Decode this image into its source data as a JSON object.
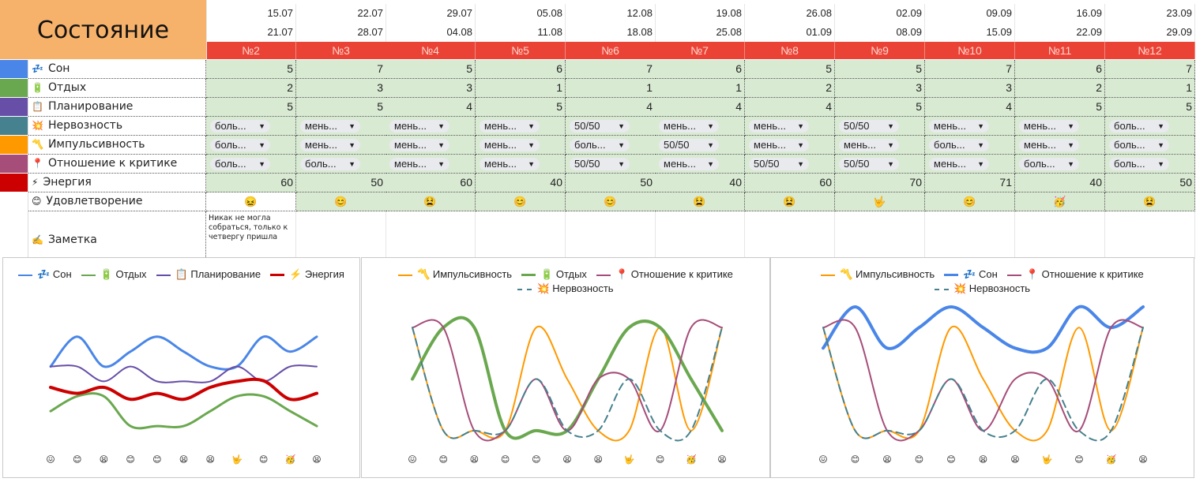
{
  "title": "Состояние",
  "weeks": [
    {
      "start": "15.07",
      "end": "21.07",
      "num": "№2"
    },
    {
      "start": "22.07",
      "end": "28.07",
      "num": "№3"
    },
    {
      "start": "29.07",
      "end": "04.08",
      "num": "№4"
    },
    {
      "start": "05.08",
      "end": "11.08",
      "num": "№5"
    },
    {
      "start": "12.08",
      "end": "18.08",
      "num": "№6"
    },
    {
      "start": "19.08",
      "end": "25.08",
      "num": "№7"
    },
    {
      "start": "26.08",
      "end": "01.09",
      "num": "№8"
    },
    {
      "start": "02.09",
      "end": "08.09",
      "num": "№9"
    },
    {
      "start": "09.09",
      "end": "15.09",
      "num": "№10"
    },
    {
      "start": "16.09",
      "end": "22.09",
      "num": "№11"
    },
    {
      "start": "23.09",
      "end": "29.09",
      "num": "№12"
    }
  ],
  "rows": [
    {
      "icon": "💤",
      "label": "Сон",
      "color": "#4a86e8",
      "type": "num",
      "values": [
        "5",
        "7",
        "5",
        "6",
        "7",
        "6",
        "5",
        "5",
        "7",
        "6",
        "7"
      ]
    },
    {
      "icon": "🔋",
      "label": "Отдых",
      "color": "#6aa84f",
      "type": "num",
      "values": [
        "2",
        "3",
        "3",
        "1",
        "1",
        "1",
        "2",
        "3",
        "3",
        "2",
        "1"
      ]
    },
    {
      "icon": "📋",
      "label": "Планирование",
      "color": "#674ea7",
      "type": "num",
      "values": [
        "5",
        "5",
        "4",
        "5",
        "4",
        "4",
        "4",
        "5",
        "4",
        "5",
        "5"
      ]
    },
    {
      "icon": "💥",
      "label": "Нервозность",
      "color": "#45818e",
      "type": "chip",
      "values": [
        "боль...",
        "мень...",
        "мень...",
        "мень...",
        "50/50",
        "мень...",
        "мень...",
        "50/50",
        "мень...",
        "мень...",
        "боль..."
      ]
    },
    {
      "icon": "〽️",
      "label": "Импульсивность",
      "color": "#ff9900",
      "type": "chip",
      "values": [
        "боль...",
        "мень...",
        "мень...",
        "мень...",
        "боль...",
        "50/50",
        "мень...",
        "мень...",
        "боль...",
        "мень...",
        "боль..."
      ]
    },
    {
      "icon": "📍",
      "label": "Отношение к критике",
      "color": "#a64d79",
      "type": "chip",
      "values": [
        "боль...",
        "боль...",
        "мень...",
        "мень...",
        "50/50",
        "мень...",
        "50/50",
        "50/50",
        "мень...",
        "боль...",
        "боль..."
      ]
    },
    {
      "icon": "⚡",
      "label": "Энергия",
      "color": "#cc0000",
      "type": "num",
      "values": [
        "60",
        "50",
        "60",
        "40",
        "50",
        "40",
        "60",
        "70",
        "71",
        "40",
        "50"
      ]
    },
    {
      "icon": "😊",
      "label": "Удовлетворение",
      "color": "#ffffff",
      "type": "emoji",
      "values": [
        "😖",
        "😊",
        "😫",
        "😊",
        "😊",
        "😫",
        "😫",
        "🤟",
        "😊",
        "🥳",
        "😫"
      ]
    }
  ],
  "note_row": {
    "icon": "✍️",
    "label": "Заметка",
    "first_note": "Никак не могла собраться, только к четвергу пришла"
  },
  "chart_data": [
    {
      "type": "line",
      "legend": [
        {
          "name": "💤 Сон",
          "color": "#4a86e8",
          "width": 3,
          "dash": false
        },
        {
          "name": "🔋 Отдых",
          "color": "#6aa84f",
          "width": 3,
          "dash": false
        },
        {
          "name": "📋 Планирование",
          "color": "#674ea7",
          "width": 2,
          "dash": false
        },
        {
          "name": "⚡ Энергия",
          "color": "#cc0000",
          "width": 4,
          "dash": false
        }
      ],
      "categories": [
        "😖",
        "😊",
        "😫",
        "😊",
        "😊",
        "😫",
        "😫",
        "🤟",
        "😊",
        "🥳",
        "😫"
      ],
      "series": [
        {
          "name": "💤 Сон",
          "values": [
            5,
            7,
            5,
            6,
            7,
            6,
            5,
            5,
            7,
            6,
            7
          ]
        },
        {
          "name": "🔋 Отдых",
          "values": [
            2,
            3,
            3,
            1,
            1,
            1,
            2,
            3,
            3,
            2,
            1
          ]
        },
        {
          "name": "📋 Планирование",
          "values": [
            5,
            5,
            4,
            5,
            4,
            4,
            4,
            5,
            4,
            5,
            5
          ]
        },
        {
          "name": "⚡ Энергия",
          "values": [
            3.6,
            3.2,
            3.6,
            2.8,
            3.2,
            2.8,
            3.6,
            4.0,
            4.04,
            2.8,
            3.2
          ]
        }
      ],
      "ylim": [
        0,
        9
      ]
    },
    {
      "type": "line",
      "legend": [
        {
          "name": "〽️ Импульсивность",
          "color": "#ff9900",
          "width": 2,
          "dash": false
        },
        {
          "name": "🔋 Отдых",
          "color": "#6aa84f",
          "width": 4,
          "dash": false
        },
        {
          "name": "📍 Отношение к критике",
          "color": "#a64d79",
          "width": 2,
          "dash": false
        },
        {
          "name": "💥 Нервозность",
          "color": "#45818e",
          "width": 2,
          "dash": true
        }
      ],
      "categories": [
        "😖",
        "😊",
        "😫",
        "😊",
        "😊",
        "😫",
        "😫",
        "🤟",
        "😊",
        "🥳",
        "😫"
      ],
      "series": [
        {
          "name": "〽️ Импульсивность",
          "values": [
            3,
            1,
            1,
            1,
            3,
            2,
            1,
            1,
            3,
            1,
            3
          ]
        },
        {
          "name": "🔋 Отдых",
          "values": [
            2,
            3,
            3,
            1,
            1,
            1,
            2,
            3,
            3,
            2,
            1
          ]
        },
        {
          "name": "📍 Отношение к критике",
          "values": [
            3,
            3,
            1,
            1,
            2,
            1,
            2,
            2,
            1,
            3,
            3
          ]
        },
        {
          "name": "💥 Нервозность",
          "values": [
            3,
            1,
            1,
            1,
            2,
            1,
            1,
            2,
            1,
            1,
            3
          ]
        }
      ],
      "ylim": [
        0.8,
        3.4
      ]
    },
    {
      "type": "line",
      "legend": [
        {
          "name": "〽️ Импульсивность",
          "color": "#ff9900",
          "width": 2,
          "dash": false
        },
        {
          "name": "💤 Сон",
          "color": "#4a86e8",
          "width": 4,
          "dash": false
        },
        {
          "name": "📍 Отношение к критике",
          "color": "#a64d79",
          "width": 2,
          "dash": false
        },
        {
          "name": "💥 Нервозность",
          "color": "#45818e",
          "width": 2,
          "dash": true
        }
      ],
      "categories": [
        "😖",
        "😊",
        "😫",
        "😊",
        "😊",
        "😫",
        "😫",
        "🤟",
        "😊",
        "🥳",
        "😫"
      ],
      "series": [
        {
          "name": "〽️ Импульсивность",
          "values": [
            3,
            1,
            1,
            1,
            3,
            2,
            1,
            1,
            3,
            1,
            3
          ]
        },
        {
          "name": "💤 Сон",
          "values": [
            2.6,
            3.4,
            2.6,
            3.0,
            3.4,
            3.0,
            2.6,
            2.6,
            3.4,
            3.0,
            3.4
          ]
        },
        {
          "name": "📍 Отношение к критике",
          "values": [
            3,
            3,
            1,
            1,
            2,
            1,
            2,
            2,
            1,
            3,
            3
          ]
        },
        {
          "name": "💥 Нервозность",
          "values": [
            3,
            1,
            1,
            1,
            2,
            1,
            1,
            2,
            1,
            1,
            3
          ]
        }
      ],
      "ylim": [
        0.8,
        3.4
      ]
    }
  ]
}
